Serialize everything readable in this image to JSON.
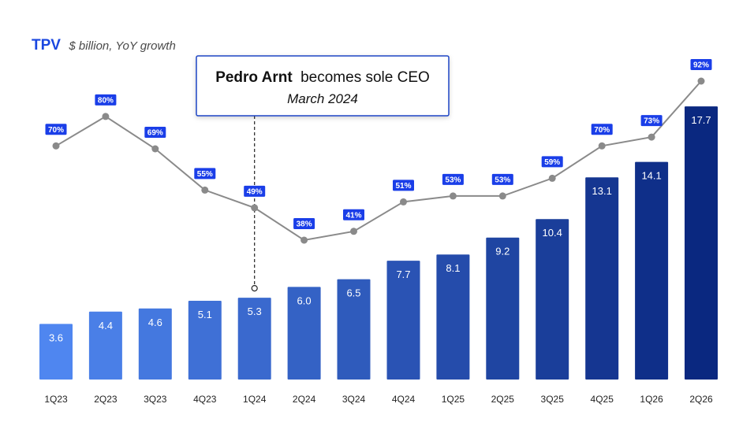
{
  "title": {
    "main": "TPV",
    "subtitle": "$ billion, YoY growth"
  },
  "callout": {
    "name": "Pedro Arnt",
    "text": "becomes sole CEO",
    "date": "March 2024",
    "anchor_category": "1Q24"
  },
  "colors": {
    "title": "#1a47e0",
    "callout_border": "#1e44c4",
    "growth_line": "#8a8a8a",
    "growth_label_bg": "#1a3ee8",
    "bar_start": "#4f86f0",
    "bar_end": "#0a2880"
  },
  "chart_data": {
    "type": "bar",
    "categories": [
      "1Q23",
      "2Q23",
      "3Q23",
      "4Q23",
      "1Q24",
      "2Q24",
      "3Q24",
      "4Q24",
      "1Q25",
      "2Q25",
      "3Q25",
      "4Q25",
      "1Q26",
      "2Q26"
    ],
    "series": [
      {
        "type": "bar",
        "values": [
          3.6,
          4.4,
          4.6,
          5.1,
          5.3,
          6.0,
          6.5,
          7.7,
          8.1,
          9.2,
          10.4,
          13.1,
          14.1,
          17.7
        ],
        "labels": [
          "3.6",
          "4.4",
          "4.6",
          "5.1",
          "5.3",
          "6.0",
          "6.5",
          "7.7",
          "8.1",
          "9.2",
          "10.4",
          "13.1",
          "14.1",
          "17.7"
        ]
      },
      {
        "type": "line",
        "values": [
          70,
          80,
          69,
          55,
          49,
          38,
          41,
          51,
          53,
          53,
          59,
          70,
          73,
          92
        ],
        "labels": [
          "70%",
          "80%",
          "69%",
          "55%",
          "49%",
          "38%",
          "41%",
          "51%",
          "53%",
          "53%",
          "59%",
          "70%",
          "73%",
          "92%"
        ]
      }
    ],
    "title": "TPV",
    "subtitle": "$ billion, YoY growth",
    "legend": "none",
    "grid": false
  }
}
